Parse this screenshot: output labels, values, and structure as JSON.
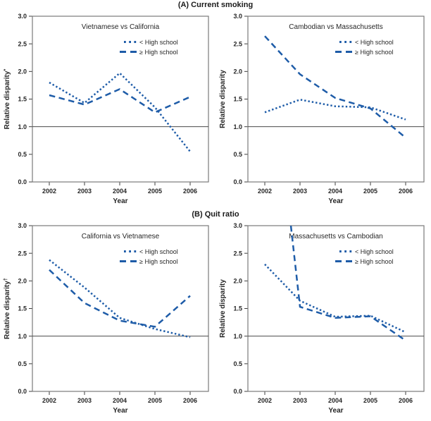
{
  "figure": {
    "section_a_title": "(A) Current smoking",
    "section_b_title": "(B) Quit ratio"
  },
  "axis": {
    "x_label": "Year",
    "x_ticks": [
      "2002",
      "2003",
      "2004",
      "2005",
      "2006"
    ],
    "y_ticks": [
      "3.0",
      "2.5",
      "2.0",
      "1.5",
      "1.0",
      "0.5",
      "0.0"
    ],
    "y_range": [
      0,
      3
    ],
    "reference_line_y": 1.0,
    "grid": "off"
  },
  "legend": {
    "position": "top-right-inside",
    "lt_label": "< High school",
    "ge_label": "≥ High school"
  },
  "colors": {
    "line_blue": "#1e5ca8",
    "axis_gray": "#7a7a7a",
    "reference_line": "#4a4a4a",
    "text": "#262626"
  },
  "chart_data": [
    {
      "type": "line",
      "panel": "top-left",
      "section": "(A) Current smoking",
      "title": "Vietnamese vs California",
      "xlabel": "Year",
      "ylabel": "Relative disparity*",
      "x": [
        2002,
        2003,
        2004,
        2005,
        2006
      ],
      "ylim": [
        0,
        3
      ],
      "reference_y": 1.0,
      "series": [
        {
          "name": "< High school",
          "style": "dotted",
          "values": [
            1.8,
            1.43,
            1.97,
            1.35,
            0.55
          ]
        },
        {
          "name": "≥ High school",
          "style": "dashed",
          "values": [
            1.57,
            1.4,
            1.68,
            1.26,
            1.54
          ]
        }
      ]
    },
    {
      "type": "line",
      "panel": "top-right",
      "section": "(A) Current smoking",
      "title": "Cambodian vs Massachusetts",
      "xlabel": "Year",
      "ylabel": "Relative disparity",
      "x": [
        2002,
        2003,
        2004,
        2005,
        2006
      ],
      "ylim": [
        0,
        3
      ],
      "reference_y": 1.0,
      "series": [
        {
          "name": "< High school",
          "style": "dotted",
          "values": [
            1.26,
            1.49,
            1.37,
            1.35,
            1.13
          ]
        },
        {
          "name": "≥ High school",
          "style": "dashed",
          "values": [
            2.64,
            1.95,
            1.52,
            1.33,
            0.8
          ]
        }
      ]
    },
    {
      "type": "line",
      "panel": "bottom-left",
      "section": "(B) Quit ratio",
      "title": "California vs  Vietnamese",
      "xlabel": "Year",
      "ylabel": "Relative disparity†",
      "x": [
        2002,
        2003,
        2004,
        2005,
        2006
      ],
      "ylim": [
        0,
        3
      ],
      "reference_y": 1.0,
      "series": [
        {
          "name": "< High school",
          "style": "dotted",
          "values": [
            2.38,
            1.88,
            1.33,
            1.13,
            0.98
          ]
        },
        {
          "name": "≥ High school",
          "style": "dashed",
          "values": [
            2.2,
            1.6,
            1.28,
            1.17,
            1.73
          ]
        }
      ]
    },
    {
      "type": "line",
      "panel": "bottom-right",
      "section": "(B) Quit ratio",
      "title": "Massachusetts vs Cambodian",
      "xlabel": "Year",
      "ylabel": "Relative disparity",
      "x": [
        2002,
        2003,
        2004,
        2005,
        2006
      ],
      "ylim": [
        0,
        3
      ],
      "reference_y": 1.0,
      "series": [
        {
          "name": "< High school",
          "style": "dotted",
          "values": [
            2.3,
            1.64,
            1.35,
            1.37,
            1.07
          ]
        },
        {
          "name": "≥ High school",
          "style": "dashed",
          "values": [
            null,
            1.53,
            1.33,
            1.36,
            0.92
          ],
          "entry_point": {
            "x": 2002.74,
            "y": 3.0
          },
          "note": "2002 value exceeds y-axis maximum; line clipped at top of plot (3.0)"
        }
      ]
    }
  ]
}
